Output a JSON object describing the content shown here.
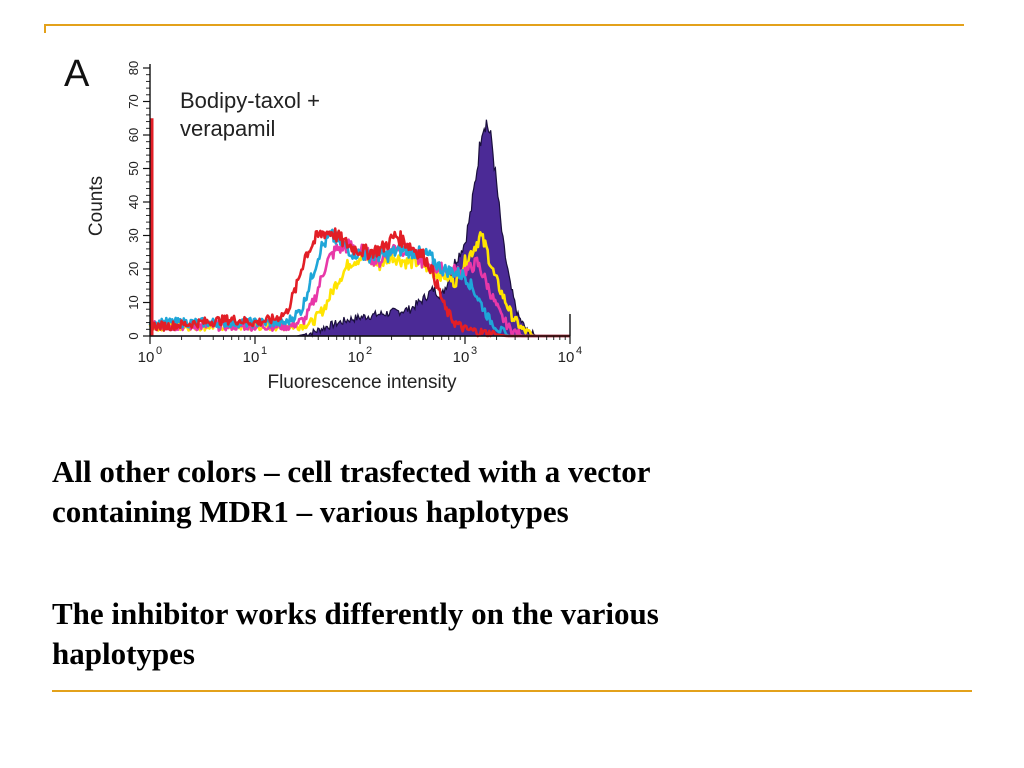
{
  "slide": {
    "accent_color": "#E3A11B",
    "captions": [
      [
        "All other colors – cell trasfected with a vector",
        "containing MDR1 – various haplotypes"
      ],
      [
        "The inhibitor works differently on the various",
        "haplotypes"
      ]
    ]
  },
  "chart_data": {
    "type": "area",
    "panel_label": "A",
    "annotation": [
      "Bodipy-taxol +",
      "verapamil"
    ],
    "xlabel": "Fluorescence intensity",
    "ylabel": "Counts",
    "x_scale": "log",
    "xlim": [
      1,
      10000
    ],
    "ylim": [
      0,
      80
    ],
    "x_ticks": [
      {
        "value": 1,
        "base": "10",
        "exp": "0"
      },
      {
        "value": 10,
        "base": "10",
        "exp": "1"
      },
      {
        "value": 100,
        "base": "10",
        "exp": "2"
      },
      {
        "value": 1000,
        "base": "10",
        "exp": "3"
      },
      {
        "value": 10000,
        "base": "10",
        "exp": "4"
      }
    ],
    "y_ticks": [
      "0",
      "10",
      "20",
      "30",
      "40",
      "50",
      "60",
      "70",
      "80"
    ],
    "grid": false,
    "legend": "none",
    "series": [
      {
        "style": "filled",
        "color": "#4B2A96",
        "points": [
          [
            1,
            0
          ],
          [
            10,
            0
          ],
          [
            25,
            0
          ],
          [
            35,
            1
          ],
          [
            50,
            3
          ],
          [
            80,
            5
          ],
          [
            120,
            6
          ],
          [
            200,
            7
          ],
          [
            300,
            8
          ],
          [
            400,
            11
          ],
          [
            500,
            14
          ],
          [
            600,
            12
          ],
          [
            700,
            17
          ],
          [
            800,
            22
          ],
          [
            900,
            25
          ],
          [
            1000,
            28
          ],
          [
            1150,
            38
          ],
          [
            1300,
            50
          ],
          [
            1450,
            62
          ],
          [
            1600,
            64
          ],
          [
            1800,
            58
          ],
          [
            2000,
            45
          ],
          [
            2300,
            28
          ],
          [
            2700,
            15
          ],
          [
            3200,
            6
          ],
          [
            4000,
            1
          ],
          [
            5000,
            0
          ],
          [
            10000,
            0
          ]
        ]
      },
      {
        "style": "line",
        "color": "#FFE400",
        "points": [
          [
            1,
            3
          ],
          [
            10,
            3
          ],
          [
            25,
            3
          ],
          [
            35,
            4
          ],
          [
            45,
            8
          ],
          [
            60,
            16
          ],
          [
            80,
            22
          ],
          [
            110,
            24
          ],
          [
            150,
            21
          ],
          [
            200,
            24
          ],
          [
            280,
            22
          ],
          [
            380,
            22
          ],
          [
            500,
            19
          ],
          [
            650,
            18
          ],
          [
            800,
            16
          ],
          [
            1000,
            22
          ],
          [
            1200,
            26
          ],
          [
            1400,
            30
          ],
          [
            1600,
            26
          ],
          [
            1900,
            18
          ],
          [
            2300,
            12
          ],
          [
            2800,
            6
          ],
          [
            3500,
            2
          ],
          [
            4500,
            0
          ],
          [
            10000,
            0
          ]
        ]
      },
      {
        "style": "line",
        "color": "#E838A8",
        "points": [
          [
            1,
            3
          ],
          [
            10,
            3
          ],
          [
            22,
            3
          ],
          [
            30,
            5
          ],
          [
            38,
            12
          ],
          [
            48,
            22
          ],
          [
            60,
            26
          ],
          [
            80,
            27
          ],
          [
            110,
            25
          ],
          [
            150,
            22
          ],
          [
            220,
            27
          ],
          [
            300,
            25
          ],
          [
            400,
            22
          ],
          [
            550,
            20
          ],
          [
            700,
            20
          ],
          [
            900,
            19
          ],
          [
            1100,
            20
          ],
          [
            1300,
            22
          ],
          [
            1500,
            18
          ],
          [
            1800,
            12
          ],
          [
            2200,
            6
          ],
          [
            2700,
            2
          ],
          [
            3500,
            0
          ],
          [
            10000,
            0
          ]
        ]
      },
      {
        "style": "line",
        "color": "#1FA6D8",
        "points": [
          [
            1,
            4
          ],
          [
            10,
            4
          ],
          [
            20,
            4
          ],
          [
            28,
            8
          ],
          [
            35,
            18
          ],
          [
            42,
            26
          ],
          [
            52,
            30
          ],
          [
            65,
            28
          ],
          [
            85,
            25
          ],
          [
            120,
            24
          ],
          [
            180,
            24
          ],
          [
            250,
            26
          ],
          [
            330,
            25
          ],
          [
            450,
            24
          ],
          [
            600,
            20
          ],
          [
            800,
            19
          ],
          [
            1000,
            18
          ],
          [
            1200,
            14
          ],
          [
            1400,
            10
          ],
          [
            1700,
            5
          ],
          [
            2100,
            2
          ],
          [
            2600,
            0
          ],
          [
            10000,
            0
          ]
        ]
      },
      {
        "style": "line",
        "color": "#E21E26",
        "points": [
          [
            1,
            3
          ],
          [
            1.5,
            3
          ],
          [
            3,
            4
          ],
          [
            6,
            5
          ],
          [
            10,
            4
          ],
          [
            15,
            5
          ],
          [
            20,
            7
          ],
          [
            25,
            15
          ],
          [
            30,
            24
          ],
          [
            38,
            29
          ],
          [
            45,
            31
          ],
          [
            55,
            31
          ],
          [
            70,
            28
          ],
          [
            90,
            26
          ],
          [
            120,
            25
          ],
          [
            160,
            26
          ],
          [
            220,
            30
          ],
          [
            270,
            28
          ],
          [
            330,
            26
          ],
          [
            400,
            24
          ],
          [
            480,
            20
          ],
          [
            560,
            14
          ],
          [
            650,
            8
          ],
          [
            800,
            4
          ],
          [
            1000,
            2
          ],
          [
            1500,
            1
          ],
          [
            2500,
            0
          ],
          [
            10000,
            0
          ]
        ]
      }
    ],
    "notes": "red trace also shows a tall spike at the left edge of the plot (x = 1, counts ~65)",
    "spike": {
      "color": "#E21E26",
      "x": 1,
      "y": 65
    }
  }
}
